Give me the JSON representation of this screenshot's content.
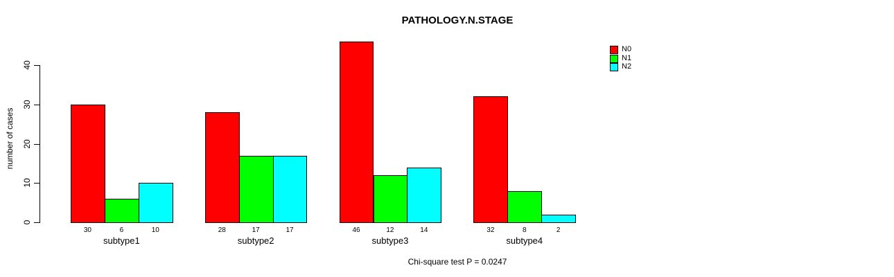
{
  "chart_data": {
    "type": "bar",
    "title": "PATHOLOGY.N.STAGE",
    "ylabel": "number of cases",
    "xlabel": "",
    "categories": [
      "subtype1",
      "subtype2",
      "subtype3",
      "subtype4"
    ],
    "series": [
      {
        "name": "N0",
        "color": "#FF0000",
        "values": [
          30,
          28,
          46,
          32
        ]
      },
      {
        "name": "N1",
        "color": "#00FF00",
        "values": [
          6,
          17,
          12,
          8
        ]
      },
      {
        "name": "N2",
        "color": "#00FFFF",
        "values": [
          10,
          17,
          14,
          2
        ]
      }
    ],
    "yticks": [
      0,
      10,
      20,
      30,
      40
    ],
    "ylim": [
      0,
      46
    ],
    "grid": false,
    "bar_value_labels": true,
    "legend_position": "top-right",
    "footnote": "Chi-square test P = 0.0247",
    "background_color": "#FFFFFF",
    "axis_color": "#000000"
  }
}
